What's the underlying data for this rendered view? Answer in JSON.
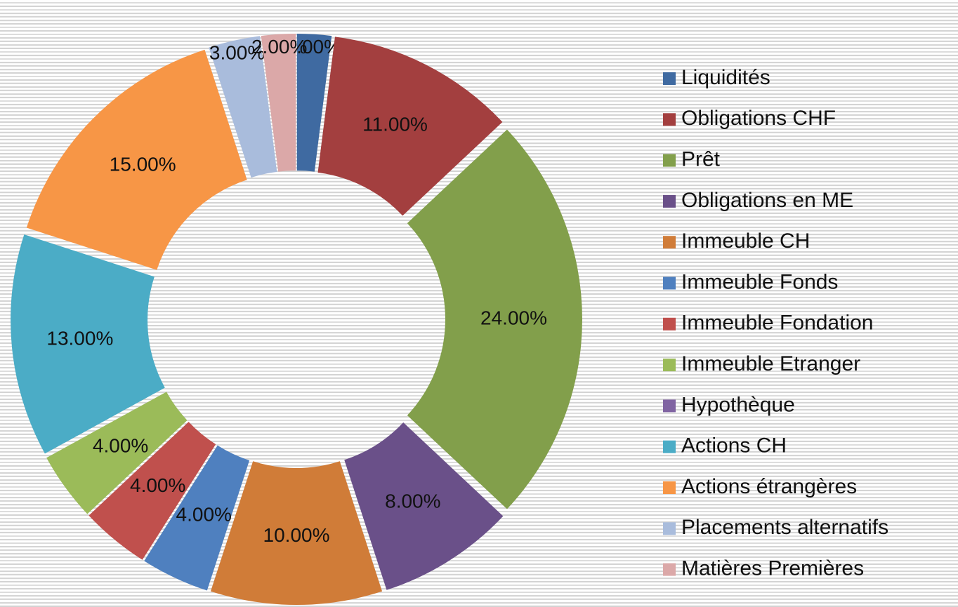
{
  "chart_data": {
    "type": "donut",
    "categories": [
      "Liquidités",
      "Obligations CHF",
      "Prêt",
      "Obligations en ME",
      "Immeuble CH",
      "Immeuble Fonds",
      "Immeuble Fondation",
      "Immeuble Etranger",
      "Hypothèque",
      "Actions CH",
      "Actions étrangères",
      "Placements alternatifs",
      "Matières Premières"
    ],
    "values": [
      2,
      11,
      24,
      8,
      10,
      4,
      4,
      4,
      0,
      13,
      15,
      3,
      2
    ],
    "value_labels": [
      "2.00%",
      "11.00%",
      "24.00%",
      "8.00%",
      "10.00%",
      "4.00%",
      "4.00%",
      "4.00%",
      null,
      "13.00%",
      "15.00%",
      "3.00%",
      "2.00%"
    ],
    "colors": [
      "#3f6aa1",
      "#a33f3f",
      "#829f4b",
      "#6a5089",
      "#d07c38",
      "#4f80bf",
      "#c0504d",
      "#9bbb59",
      "#8064a2",
      "#4bacc6",
      "#f79646",
      "#a9bcdc",
      "#dba8a8"
    ],
    "legend": "right"
  }
}
